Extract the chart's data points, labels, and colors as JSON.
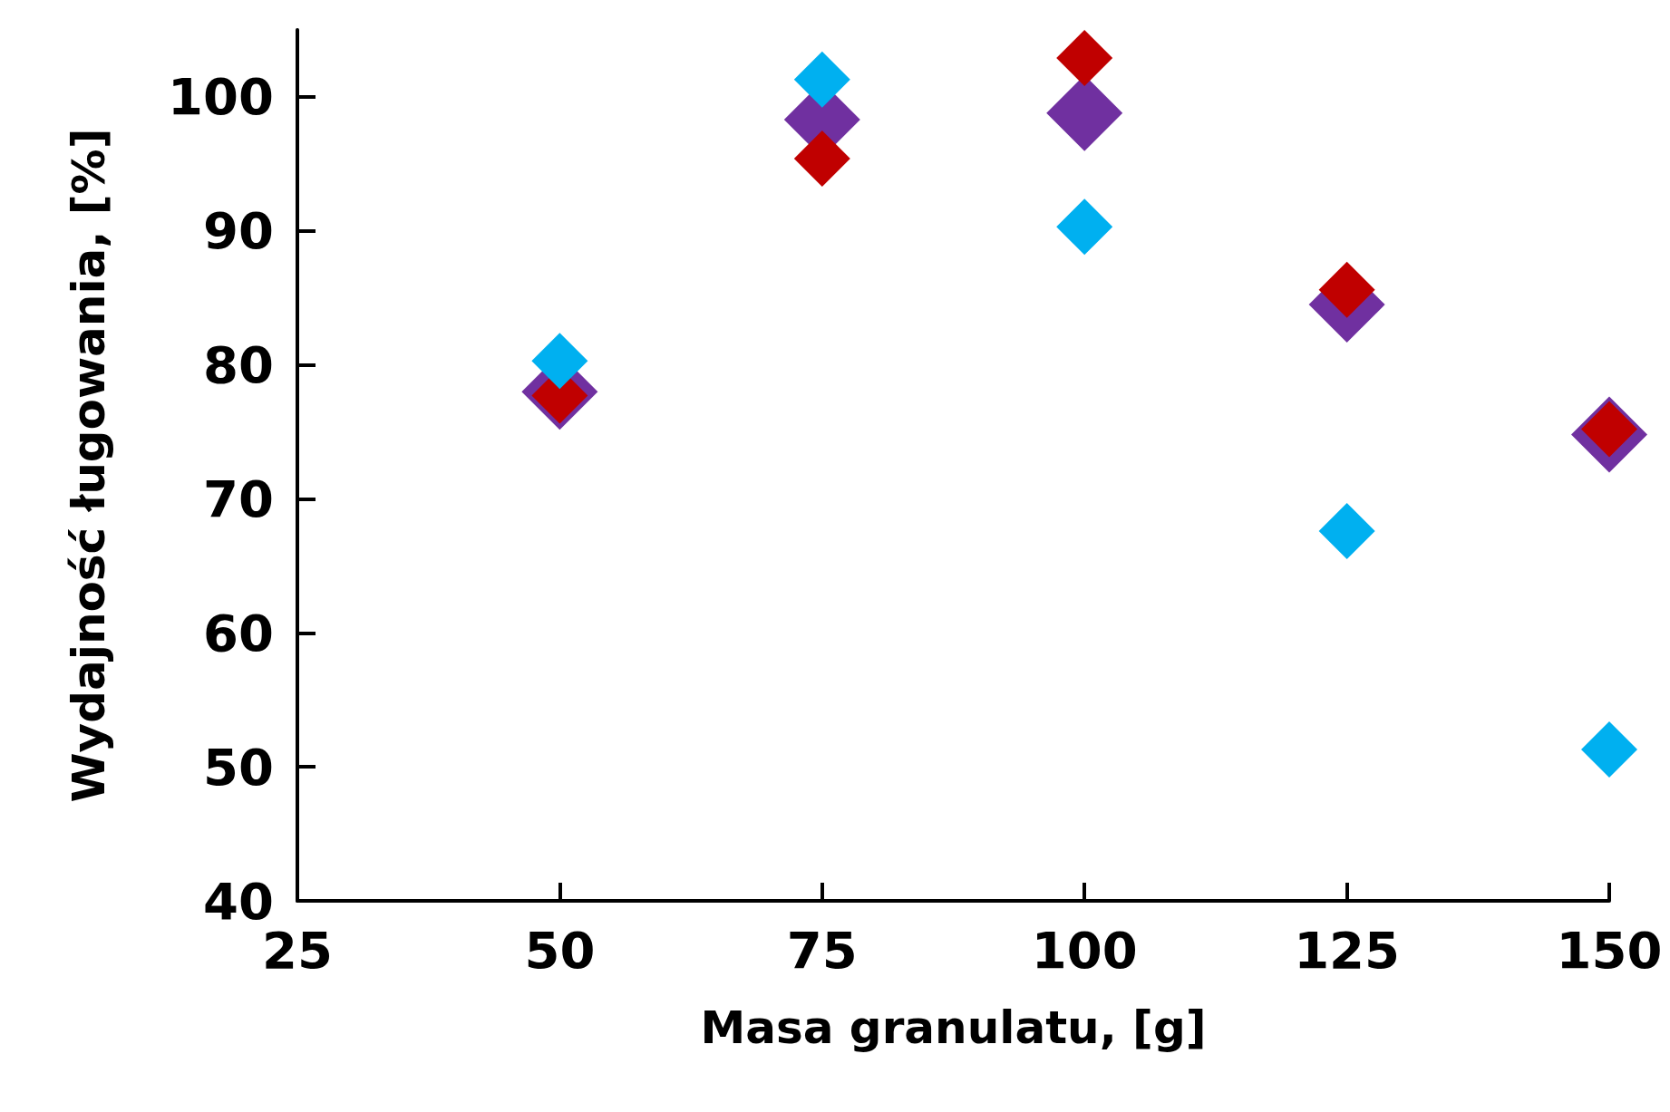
{
  "chart_data": {
    "type": "scatter",
    "xlabel": "Masa granulatu, [g]",
    "ylabel": "Wydajność ługowania, [%]",
    "x": [
      50,
      75,
      100,
      125,
      150
    ],
    "series": [
      {
        "color": "#7030a0",
        "values": [
          78.0,
          98.3,
          98.8,
          84.5,
          74.8
        ]
      },
      {
        "color": "#c00000",
        "values": [
          77.7,
          95.4,
          102.9,
          85.6,
          75.2
        ]
      },
      {
        "color": "#00b0f0",
        "values": [
          80.3,
          101.3,
          90.3,
          67.6,
          51.3
        ]
      }
    ],
    "xlim": [
      25,
      150
    ],
    "ylim": [
      40,
      105
    ],
    "xticks": [
      25,
      50,
      75,
      100,
      125,
      150
    ],
    "yticks": [
      40,
      50,
      60,
      70,
      80,
      90,
      100
    ],
    "marker": "diamond",
    "grid": false
  }
}
